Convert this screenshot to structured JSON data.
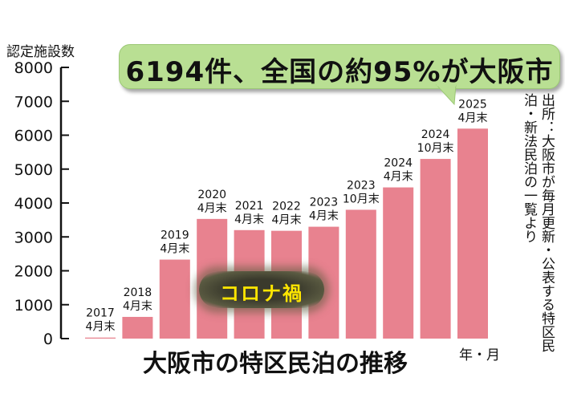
{
  "chart_data": {
    "type": "bar",
    "ylabel": "認定施設数",
    "xlabel": "年・月",
    "ylim": [
      0,
      8000
    ],
    "yticks": [
      0,
      1000,
      2000,
      3000,
      4000,
      5000,
      6000,
      7000,
      8000
    ],
    "categories": [
      [
        "2017",
        "4月末"
      ],
      [
        "2018",
        "4月末"
      ],
      [
        "2019",
        "4月末"
      ],
      [
        "2020",
        "4月末"
      ],
      [
        "2021",
        "4月末"
      ],
      [
        "2022",
        "4月末"
      ],
      [
        "2023",
        "4月末"
      ],
      [
        "2023",
        "10月末"
      ],
      [
        "2024",
        "4月末"
      ],
      [
        "2024",
        "10月末"
      ],
      [
        "2025",
        "4月末"
      ]
    ],
    "values": [
      30,
      640,
      2330,
      3530,
      3200,
      3180,
      3300,
      3800,
      4460,
      5300,
      6194
    ],
    "title": "大阪市の特区民泊の推移",
    "bar_color": "#e8828f"
  },
  "callout": {
    "text": "6194件、全国の約95%が大阪市",
    "color": "#b9df93"
  },
  "annotation": {
    "text": "コロナ禍",
    "color": "#ffe600"
  },
  "source": "出所：大阪市が毎月更新・公表する特区民泊・新法民泊の一覧より"
}
